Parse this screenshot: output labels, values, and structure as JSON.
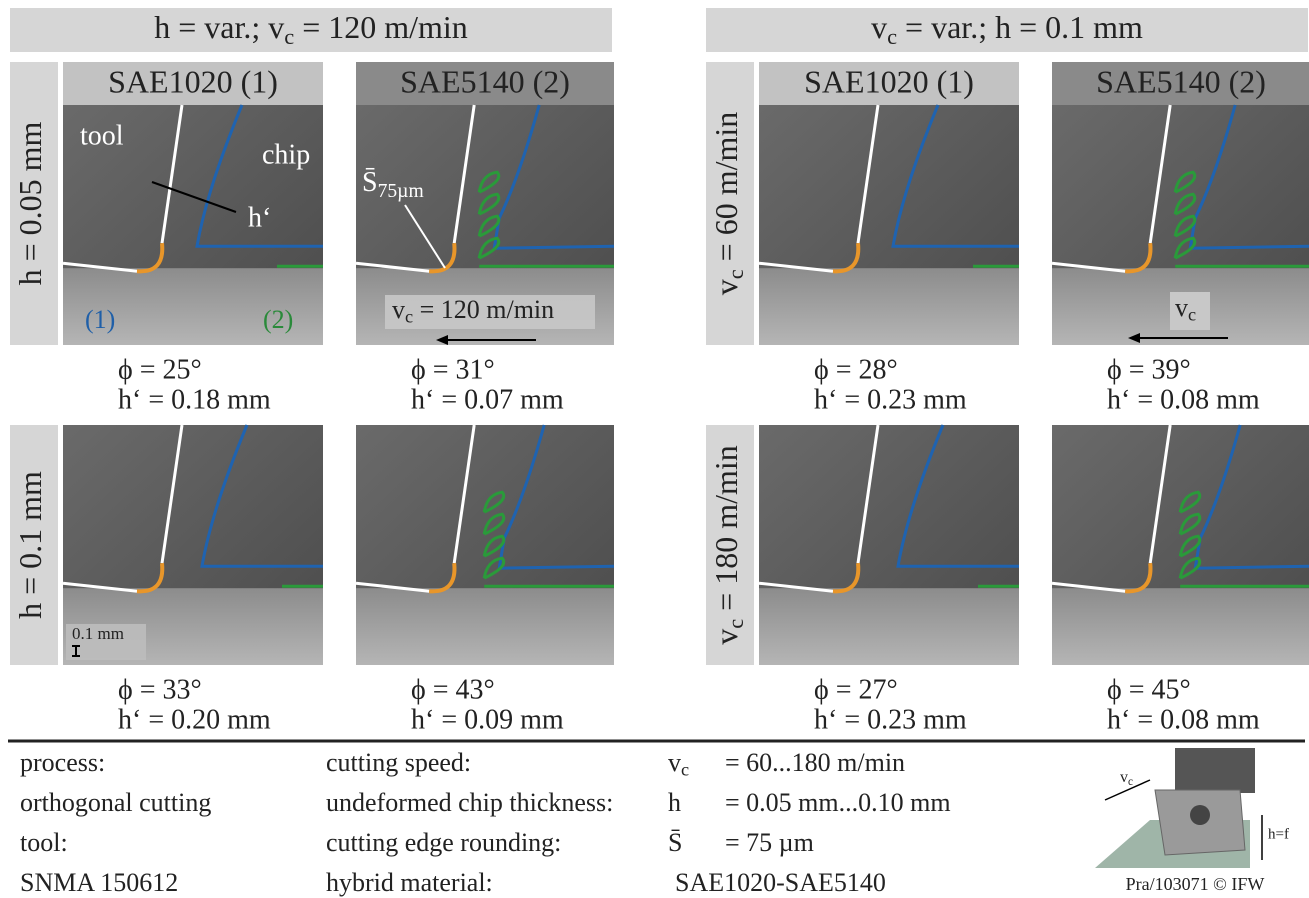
{
  "groups": [
    {
      "header": [
        "h = var.; v",
        "c",
        " = 120 m/min"
      ],
      "columns": [
        "SAE1020 (1)",
        "SAE5140 (2)"
      ],
      "rows": [
        {
          "label": [
            "h = 0.05 mm"
          ],
          "cells": [
            {
              "phi": "ϕ  = 25°",
              "h": "h‘ = 0.18 mm"
            },
            {
              "phi": "ϕ  = 31°",
              "h": "h‘ = 0.07 mm"
            }
          ]
        },
        {
          "label": [
            "h = 0.1 mm"
          ],
          "cells": [
            {
              "phi": "ϕ  = 33°",
              "h": "h‘ = 0.20 mm"
            },
            {
              "phi": "ϕ  = 43°",
              "h": "h‘ = 0.09 mm"
            }
          ]
        }
      ]
    },
    {
      "header": [
        "v",
        "c",
        " = var.; h = 0.1 mm"
      ],
      "columns": [
        "SAE1020 (1)",
        "SAE5140 (2)"
      ],
      "rows": [
        {
          "label": [
            "v",
            "c",
            " = 60 m/min"
          ],
          "cells": [
            {
              "phi": "ϕ  = 28°",
              "h": "h‘ = 0.23 mm"
            },
            {
              "phi": "ϕ  = 39°",
              "h": "h‘ = 0.08 mm"
            }
          ]
        },
        {
          "label": [
            "v",
            "c",
            " = 180 m/min"
          ],
          "cells": [
            {
              "phi": "ϕ  = 27°",
              "h": "h‘ = 0.23 mm"
            },
            {
              "phi": "ϕ  = 45°",
              "h": "h‘ = 0.08 mm"
            }
          ]
        }
      ]
    }
  ],
  "annotations": {
    "tool": "tool",
    "chip": "chip",
    "h_prime": "h‘",
    "mat1": "(1)",
    "mat2": "(2)",
    "edge": [
      "S̄",
      "75µm"
    ],
    "speed": [
      "v",
      "c",
      " = 120 m/min"
    ],
    "speed2": [
      "v",
      "c"
    ],
    "scale": "0.1 mm"
  },
  "parameters": {
    "left": [
      "process:",
      "orthogonal cutting",
      "tool:",
      "SNMA 150612"
    ],
    "labels": [
      "cutting speed:",
      "undeformed chip thickness:",
      "cutting edge rounding:",
      "hybrid material:"
    ],
    "symbols": [
      [
        "v",
        "c"
      ],
      [
        "h"
      ],
      [
        "S̄"
      ]
    ],
    "values": [
      "= 60...180 m/min",
      "= 0.05 mm...0.10 mm",
      "= 75 µm"
    ],
    "material": "SAE1020-SAE5140"
  },
  "schematic": {
    "speed": [
      "v",
      "c"
    ],
    "thickness": "h=f",
    "credit": "Pra/103071 © IFW"
  }
}
